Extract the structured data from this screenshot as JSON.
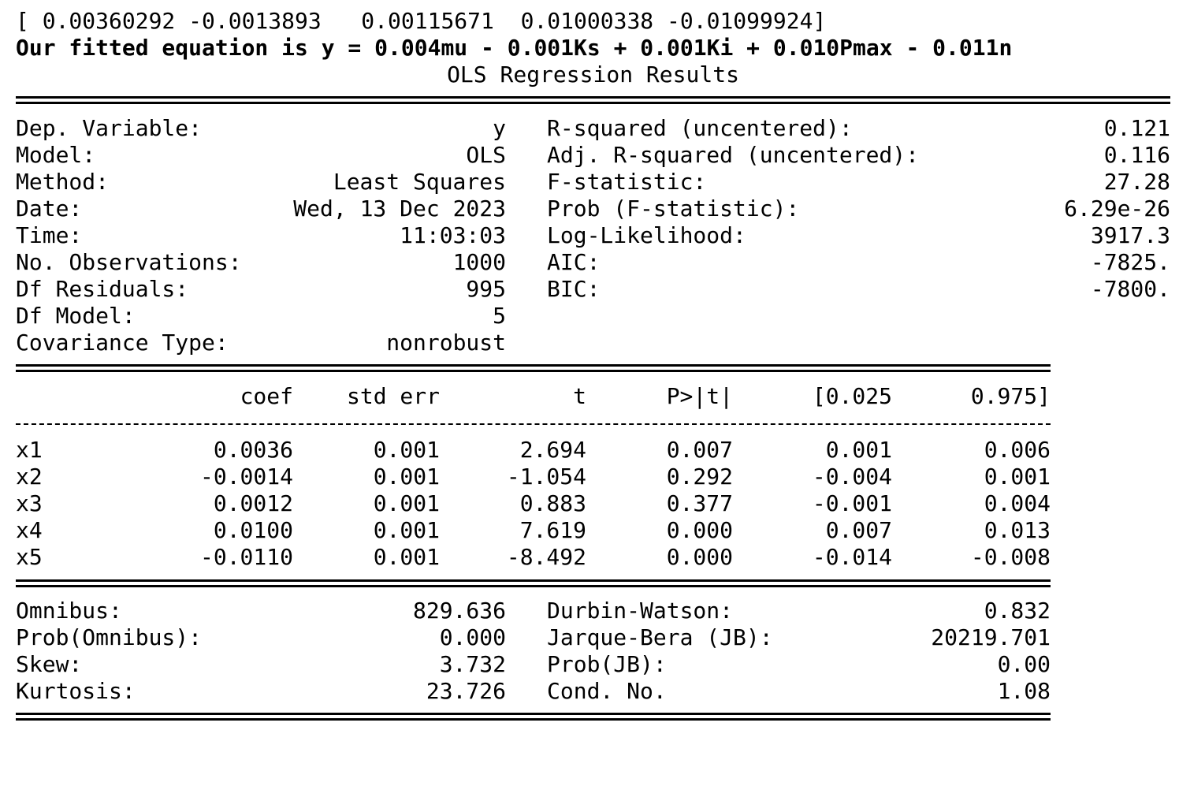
{
  "params_line": "[ 0.00360292 -0.0013893   0.00115671  0.01000338 -0.01099924]",
  "equation_line": "Our fitted equation is y = 0.004mu - 0.001Ks + 0.001Ki + 0.010Pmax - 0.011n",
  "title": "OLS Regression Results",
  "summary_left": [
    {
      "label": "Dep. Variable:",
      "value": "y"
    },
    {
      "label": "Model:",
      "value": "OLS"
    },
    {
      "label": "Method:",
      "value": "Least Squares"
    },
    {
      "label": "Date:",
      "value": "Wed, 13 Dec 2023"
    },
    {
      "label": "Time:",
      "value": "11:03:03"
    },
    {
      "label": "No. Observations:",
      "value": "1000"
    },
    {
      "label": "Df Residuals:",
      "value": "995"
    },
    {
      "label": "Df Model:",
      "value": "5"
    },
    {
      "label": "Covariance Type:",
      "value": "nonrobust"
    }
  ],
  "summary_right": [
    {
      "label": "R-squared (uncentered):",
      "value": "0.121"
    },
    {
      "label": "Adj. R-squared (uncentered):",
      "value": "0.116"
    },
    {
      "label": "F-statistic:",
      "value": "27.28"
    },
    {
      "label": "Prob (F-statistic):",
      "value": "6.29e-26"
    },
    {
      "label": "Log-Likelihood:",
      "value": "3917.3"
    },
    {
      "label": "AIC:",
      "value": "-7825."
    },
    {
      "label": "BIC:",
      "value": "-7800."
    }
  ],
  "coef_headers": [
    "coef",
    "std err",
    "t",
    "P>|t|",
    "[0.025",
    "0.975]"
  ],
  "coef_rows": [
    {
      "name": "x1",
      "cells": [
        "0.0036",
        "0.001",
        "2.694",
        "0.007",
        "0.001",
        "0.006"
      ]
    },
    {
      "name": "x2",
      "cells": [
        "-0.0014",
        "0.001",
        "-1.054",
        "0.292",
        "-0.004",
        "0.001"
      ]
    },
    {
      "name": "x3",
      "cells": [
        "0.0012",
        "0.001",
        "0.883",
        "0.377",
        "-0.001",
        "0.004"
      ]
    },
    {
      "name": "x4",
      "cells": [
        "0.0100",
        "0.001",
        "7.619",
        "0.000",
        "0.007",
        "0.013"
      ]
    },
    {
      "name": "x5",
      "cells": [
        "-0.0110",
        "0.001",
        "-8.492",
        "0.000",
        "-0.014",
        "-0.008"
      ]
    }
  ],
  "diag_left": [
    {
      "label": "Omnibus:",
      "value": "829.636"
    },
    {
      "label": "Prob(Omnibus):",
      "value": "0.000"
    },
    {
      "label": "Skew:",
      "value": "3.732"
    },
    {
      "label": "Kurtosis:",
      "value": "23.726"
    }
  ],
  "diag_right": [
    {
      "label": "Durbin-Watson:",
      "value": "0.832"
    },
    {
      "label": "Jarque-Bera (JB):",
      "value": "20219.701"
    },
    {
      "label": "Prob(JB):",
      "value": "0.00"
    },
    {
      "label": "Cond. No.",
      "value": "1.08"
    }
  ]
}
